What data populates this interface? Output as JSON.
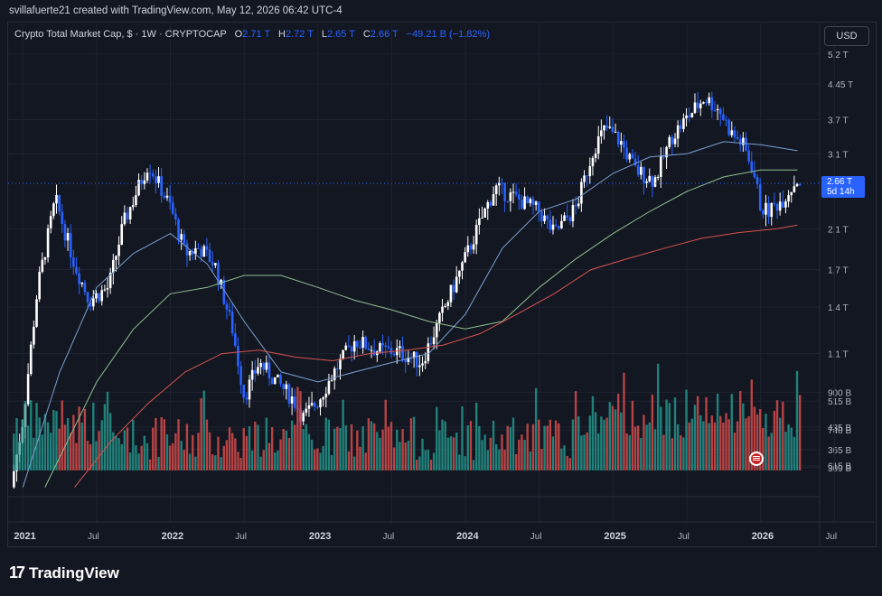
{
  "header": {
    "attribution": "svillafuerte21 created with TradingView.com, May 12, 2026 06:42 UTC-4"
  },
  "legend": {
    "symbol": "Crypto Total Market Cap, $ · 1W · CRYPTOCAP",
    "open_label": "O",
    "open": "2.71 T",
    "high_label": "H",
    "high": "2.72 T",
    "low_label": "L",
    "low": "2.65 T",
    "close_label": "C",
    "close": "2.66 T",
    "change": "−49.21 B (−1.82%)"
  },
  "currency_button": "USD",
  "price_badge": {
    "price": "2.66 T",
    "countdown": "5d 14h"
  },
  "brand": {
    "mark": "17",
    "name": "TradingView"
  },
  "colors": {
    "background": "#131722",
    "up": "#ffffff",
    "down": "#2962ff",
    "vol_up": "#26a69a",
    "vol_down": "#ef5350",
    "ma_fast": "#7b9fd1",
    "ma_mid": "#8fbf8f",
    "ma_slow": "#d9534f",
    "badge": "#2962ff"
  },
  "chart_data": {
    "type": "candlestick",
    "scale": "log",
    "y_ticks": [
      "5.2 T",
      "4.45 T",
      "3.7 T",
      "3.1 T",
      "2.1 T",
      "1.7 T",
      "1.4 T",
      "1.1 T",
      "900 B",
      "740 B",
      "615 B",
      "515 B",
      "435 B",
      "365 B",
      "309 B"
    ],
    "y_tick_values": [
      5.2,
      4.45,
      3.7,
      3.1,
      2.1,
      1.7,
      1.4,
      1.1,
      0.9,
      0.74,
      0.615,
      0.515,
      0.435,
      0.365,
      0.309
    ],
    "x_ticks": [
      {
        "label": "2021",
        "t": 2021.0,
        "year": true
      },
      {
        "label": "Jul",
        "t": 2021.5,
        "year": false
      },
      {
        "label": "2022",
        "t": 2022.0,
        "year": true
      },
      {
        "label": "Jul",
        "t": 2022.5,
        "year": false
      },
      {
        "label": "2023",
        "t": 2023.0,
        "year": true
      },
      {
        "label": "Jul",
        "t": 2023.5,
        "year": false
      },
      {
        "label": "2024",
        "t": 2024.0,
        "year": true
      },
      {
        "label": "Jul",
        "t": 2024.5,
        "year": false
      },
      {
        "label": "2025",
        "t": 2025.0,
        "year": true
      },
      {
        "label": "Jul",
        "t": 2025.5,
        "year": false
      },
      {
        "label": "2026",
        "t": 2026.0,
        "year": true
      },
      {
        "label": "Jul",
        "t": 2026.5,
        "year": false
      }
    ],
    "x_range": [
      2020.9,
      2026.4
    ],
    "y_range": [
      0.6,
      5.6
    ],
    "last_price": 2.66,
    "anchors": [
      [
        2020.92,
        0.55
      ],
      [
        2021.0,
        0.78
      ],
      [
        2021.1,
        1.55
      ],
      [
        2021.22,
        2.45
      ],
      [
        2021.35,
        1.75
      ],
      [
        2021.45,
        1.45
      ],
      [
        2021.58,
        1.55
      ],
      [
        2021.68,
        2.15
      ],
      [
        2021.85,
        2.95
      ],
      [
        2022.0,
        2.35
      ],
      [
        2022.1,
        1.85
      ],
      [
        2022.2,
        1.9
      ],
      [
        2022.3,
        1.75
      ],
      [
        2022.42,
        1.25
      ],
      [
        2022.5,
        0.88
      ],
      [
        2022.6,
        1.05
      ],
      [
        2022.72,
        0.95
      ],
      [
        2022.83,
        0.87
      ],
      [
        2022.9,
        0.79
      ],
      [
        2023.0,
        0.86
      ],
      [
        2023.1,
        0.99
      ],
      [
        2023.25,
        1.18
      ],
      [
        2023.4,
        1.12
      ],
      [
        2023.55,
        1.11
      ],
      [
        2023.7,
        1.05
      ],
      [
        2023.82,
        1.3
      ],
      [
        2023.95,
        1.65
      ],
      [
        2024.08,
        2.1
      ],
      [
        2024.2,
        2.6
      ],
      [
        2024.35,
        2.45
      ],
      [
        2024.5,
        2.3
      ],
      [
        2024.6,
        2.05
      ],
      [
        2024.75,
        2.35
      ],
      [
        2024.87,
        3.2
      ],
      [
        2024.95,
        3.55
      ],
      [
        2025.05,
        3.3
      ],
      [
        2025.15,
        2.85
      ],
      [
        2025.28,
        2.7
      ],
      [
        2025.4,
        3.4
      ],
      [
        2025.52,
        3.8
      ],
      [
        2025.62,
        4.15
      ],
      [
        2025.72,
        3.9
      ],
      [
        2025.8,
        3.45
      ],
      [
        2025.88,
        3.25
      ],
      [
        2025.95,
        2.85
      ],
      [
        2026.0,
        2.35
      ],
      [
        2026.05,
        2.3
      ],
      [
        2026.15,
        2.45
      ],
      [
        2026.25,
        2.72
      ],
      [
        2026.27,
        2.66
      ]
    ],
    "moving_averages": [
      {
        "color": "#7b9fd1",
        "points": [
          [
            2021.0,
            0.55
          ],
          [
            2021.25,
            1.0
          ],
          [
            2021.5,
            1.55
          ],
          [
            2021.75,
            1.85
          ],
          [
            2022.0,
            2.05
          ],
          [
            2022.25,
            1.75
          ],
          [
            2022.5,
            1.3
          ],
          [
            2022.75,
            1.0
          ],
          [
            2023.0,
            0.95
          ],
          [
            2023.25,
            1.0
          ],
          [
            2023.5,
            1.05
          ],
          [
            2023.75,
            1.1
          ],
          [
            2024.0,
            1.35
          ],
          [
            2024.25,
            1.9
          ],
          [
            2024.5,
            2.3
          ],
          [
            2024.75,
            2.45
          ],
          [
            2025.0,
            2.8
          ],
          [
            2025.25,
            3.05
          ],
          [
            2025.5,
            3.1
          ],
          [
            2025.75,
            3.3
          ],
          [
            2026.0,
            3.25
          ],
          [
            2026.25,
            3.15
          ]
        ]
      },
      {
        "color": "#8fbf8f",
        "points": [
          [
            2021.15,
            0.55
          ],
          [
            2021.5,
            0.95
          ],
          [
            2021.75,
            1.25
          ],
          [
            2022.0,
            1.5
          ],
          [
            2022.25,
            1.55
          ],
          [
            2022.5,
            1.65
          ],
          [
            2022.75,
            1.65
          ],
          [
            2023.0,
            1.55
          ],
          [
            2023.25,
            1.45
          ],
          [
            2023.5,
            1.38
          ],
          [
            2023.75,
            1.3
          ],
          [
            2024.0,
            1.25
          ],
          [
            2024.25,
            1.3
          ],
          [
            2024.5,
            1.55
          ],
          [
            2024.75,
            1.8
          ],
          [
            2025.0,
            2.05
          ],
          [
            2025.25,
            2.3
          ],
          [
            2025.5,
            2.55
          ],
          [
            2025.75,
            2.75
          ],
          [
            2026.0,
            2.85
          ],
          [
            2026.25,
            2.85
          ]
        ]
      },
      {
        "color": "#d9534f",
        "points": [
          [
            2021.35,
            0.55
          ],
          [
            2021.6,
            0.7
          ],
          [
            2021.85,
            0.85
          ],
          [
            2022.1,
            1.0
          ],
          [
            2022.35,
            1.1
          ],
          [
            2022.6,
            1.12
          ],
          [
            2022.85,
            1.08
          ],
          [
            2023.1,
            1.06
          ],
          [
            2023.35,
            1.1
          ],
          [
            2023.6,
            1.12
          ],
          [
            2023.85,
            1.15
          ],
          [
            2024.1,
            1.22
          ],
          [
            2024.35,
            1.35
          ],
          [
            2024.6,
            1.5
          ],
          [
            2024.85,
            1.7
          ],
          [
            2025.1,
            1.8
          ],
          [
            2025.35,
            1.9
          ],
          [
            2025.6,
            2.0
          ],
          [
            2025.85,
            2.06
          ],
          [
            2026.1,
            2.1
          ],
          [
            2026.25,
            2.14
          ]
        ]
      }
    ],
    "volume_range": [
      0.3,
      0.65
    ]
  }
}
